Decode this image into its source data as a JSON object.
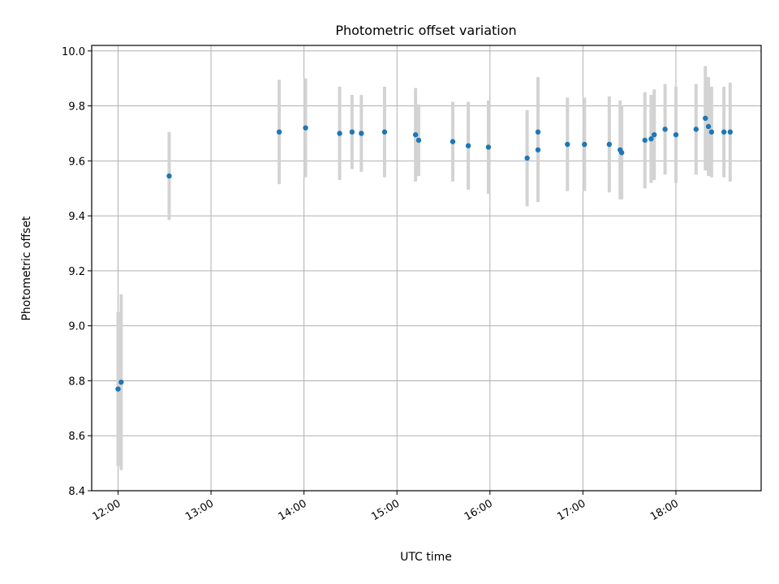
{
  "chart_data": {
    "type": "scatter",
    "title": "Photometric offset variation",
    "xlabel": "UTC time",
    "ylabel": "Photometric offset",
    "x_tick_labels": [
      "12:00",
      "13:00",
      "14:00",
      "15:00",
      "16:00",
      "17:00",
      "18:00"
    ],
    "y_tick_labels": [
      "8.4",
      "8.6",
      "8.8",
      "9.0",
      "9.2",
      "9.4",
      "9.6",
      "9.8",
      "10.0"
    ],
    "x_ticks": [
      "12:00",
      "13:00",
      "14:00",
      "15:00",
      "16:00",
      "17:00",
      "18:00"
    ],
    "y_ticks": [
      8.4,
      8.6,
      8.8,
      9.0,
      9.2,
      9.4,
      9.6,
      9.8,
      10.0
    ],
    "xlim": [
      "11:43",
      "18:55"
    ],
    "ylim": [
      8.4,
      10.02
    ],
    "grid": true,
    "colors": {
      "points": "#1f77b4",
      "error_bars": "#d3d3d3"
    },
    "points": [
      {
        "t": "12:00",
        "y": 8.77,
        "yerr": 0.28
      },
      {
        "t": "12:02",
        "y": 8.795,
        "yerr": 0.32
      },
      {
        "t": "12:33",
        "y": 9.545,
        "yerr": 0.16
      },
      {
        "t": "13:44",
        "y": 9.705,
        "yerr": 0.19
      },
      {
        "t": "14:01",
        "y": 9.72,
        "yerr": 0.18
      },
      {
        "t": "14:23",
        "y": 9.7,
        "yerr": 0.17
      },
      {
        "t": "14:31",
        "y": 9.705,
        "yerr": 0.135
      },
      {
        "t": "14:37",
        "y": 9.7,
        "yerr": 0.14
      },
      {
        "t": "14:52",
        "y": 9.705,
        "yerr": 0.165
      },
      {
        "t": "15:12",
        "y": 9.695,
        "yerr": 0.17
      },
      {
        "t": "15:14",
        "y": 9.675,
        "yerr": 0.13
      },
      {
        "t": "15:36",
        "y": 9.67,
        "yerr": 0.145
      },
      {
        "t": "15:46",
        "y": 9.655,
        "yerr": 0.16
      },
      {
        "t": "15:59",
        "y": 9.65,
        "yerr": 0.17
      },
      {
        "t": "16:24",
        "y": 9.61,
        "yerr": 0.175
      },
      {
        "t": "16:31",
        "y": 9.705,
        "yerr": 0.2
      },
      {
        "t": "16:31",
        "y": 9.64,
        "yerr": 0.19
      },
      {
        "t": "16:50",
        "y": 9.66,
        "yerr": 0.17
      },
      {
        "t": "17:01",
        "y": 9.66,
        "yerr": 0.17
      },
      {
        "t": "17:17",
        "y": 9.66,
        "yerr": 0.175
      },
      {
        "t": "17:24",
        "y": 9.64,
        "yerr": 0.18
      },
      {
        "t": "17:25",
        "y": 9.63,
        "yerr": 0.17
      },
      {
        "t": "17:40",
        "y": 9.675,
        "yerr": 0.175
      },
      {
        "t": "17:44",
        "y": 9.68,
        "yerr": 0.16
      },
      {
        "t": "17:46",
        "y": 9.695,
        "yerr": 0.165
      },
      {
        "t": "17:53",
        "y": 9.715,
        "yerr": 0.165
      },
      {
        "t": "18:00",
        "y": 9.695,
        "yerr": 0.175
      },
      {
        "t": "18:13",
        "y": 9.715,
        "yerr": 0.165
      },
      {
        "t": "18:19",
        "y": 9.755,
        "yerr": 0.19
      },
      {
        "t": "18:21",
        "y": 9.725,
        "yerr": 0.18
      },
      {
        "t": "18:23",
        "y": 9.705,
        "yerr": 0.165
      },
      {
        "t": "18:31",
        "y": 9.705,
        "yerr": 0.165
      },
      {
        "t": "18:35",
        "y": 9.705,
        "yerr": 0.18
      }
    ]
  }
}
